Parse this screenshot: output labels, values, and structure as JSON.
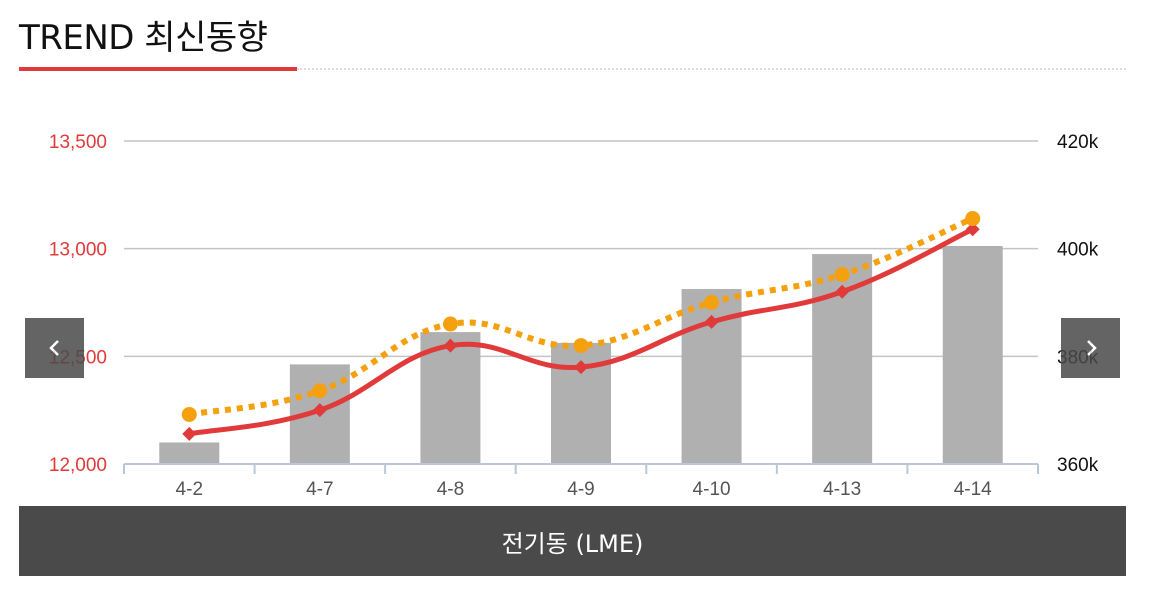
{
  "header": {
    "title": "TREND 최신동향"
  },
  "colors": {
    "accent": "#e03a3a",
    "bar": "#b0b0b0",
    "line_primary": "#e03a3a",
    "line_secondary": "#f5a00f",
    "caption_bg": "#4a4a4a",
    "nav_bg": "#4a4a4a"
  },
  "caption": {
    "label": "전기동 (LME)"
  },
  "nav": {
    "prev_icon": "chevron-left-icon",
    "next_icon": "chevron-right-icon"
  },
  "chart_data": {
    "type": "bar",
    "categories": [
      "4-2",
      "4-7",
      "4-8",
      "4-9",
      "4-10",
      "4-13",
      "4-14"
    ],
    "y_left": {
      "ticks": [
        "12,000",
        "12,500",
        "13,000",
        "13,500"
      ],
      "range": [
        12000,
        13500
      ]
    },
    "y_right": {
      "ticks": [
        "360k",
        "380k",
        "400k",
        "420k"
      ],
      "range": [
        360000,
        420000
      ]
    },
    "grid": true,
    "legend": "none",
    "series": [
      {
        "type": "bar",
        "axis": "right",
        "values": [
          364000,
          378500,
          384500,
          382500,
          392500,
          399000,
          400500
        ]
      },
      {
        "type": "line",
        "axis": "left",
        "style": "solid",
        "marker": "diamond",
        "values": [
          12140,
          12250,
          12550,
          12450,
          12660,
          12800,
          13090
        ]
      },
      {
        "type": "line",
        "axis": "left",
        "style": "dotted",
        "marker": "circle",
        "values": [
          12230,
          12340,
          12650,
          12550,
          12750,
          12880,
          13140
        ]
      }
    ]
  }
}
